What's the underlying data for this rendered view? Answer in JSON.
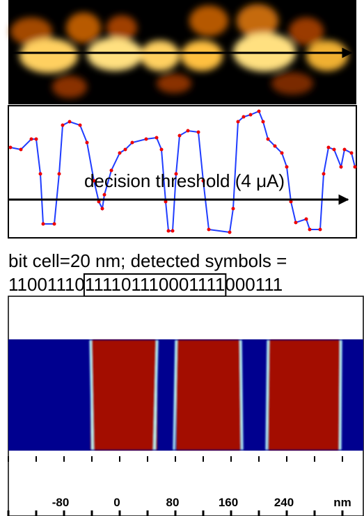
{
  "threshold_label": "decision threshold (4 μA)",
  "caption": {
    "line1": "bit cell=20 nm; detected symbols =",
    "bits_prefix": "11001110",
    "bits_boxed": "111101110001111",
    "bits_suffix": "000111"
  },
  "axis": {
    "labels": [
      "-80",
      "0",
      "80",
      "160",
      "240",
      "nm"
    ]
  }
}
